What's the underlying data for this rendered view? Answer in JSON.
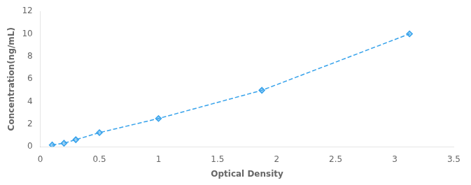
{
  "chart_data": {
    "type": "line",
    "x": [
      0.1,
      0.2,
      0.3,
      0.5,
      1.0,
      1.875,
      3.125
    ],
    "values": [
      0.156,
      0.312,
      0.625,
      1.25,
      2.5,
      5.0,
      10.0
    ],
    "xlabel": "Optical Density",
    "ylabel": "Concentration(ng/mL)",
    "xlim": [
      0,
      3.5
    ],
    "ylim": [
      0,
      12
    ],
    "xticks": [
      0,
      0.5,
      1,
      1.5,
      2,
      2.5,
      3,
      3.5
    ],
    "yticks": [
      0,
      2,
      4,
      6,
      8,
      10,
      12
    ],
    "grid": false,
    "marker": "diamond",
    "line_style": "dashed"
  }
}
